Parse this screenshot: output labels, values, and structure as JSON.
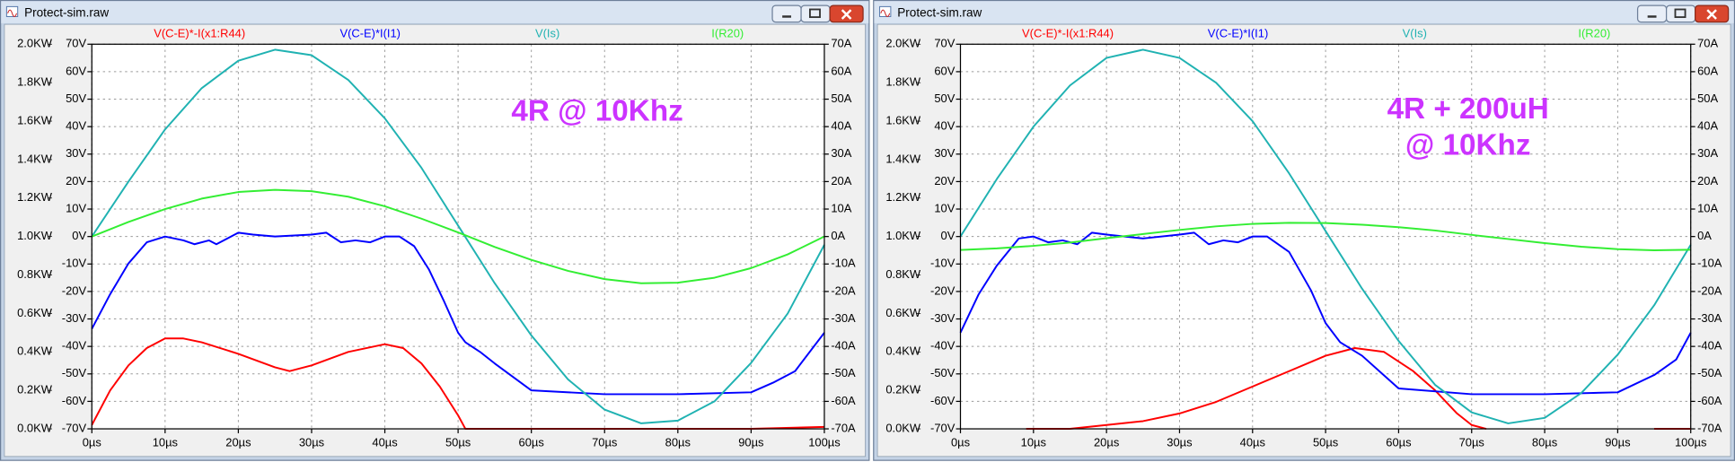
{
  "chart_data": [
    {
      "type": "line",
      "title": "Protect-sim.raw",
      "annotation": [
        "4R @ 10Khz"
      ],
      "xlim": [
        0,
        100
      ],
      "xticks": [
        {
          "value": 0,
          "label": "0µs"
        },
        {
          "value": 10,
          "label": "10µs"
        },
        {
          "value": 20,
          "label": "20µs"
        },
        {
          "value": 30,
          "label": "30µs"
        },
        {
          "value": 40,
          "label": "40µs"
        },
        {
          "value": 50,
          "label": "50µs"
        },
        {
          "value": 60,
          "label": "60µs"
        },
        {
          "value": 70,
          "label": "70µs"
        },
        {
          "value": 80,
          "label": "80µs"
        },
        {
          "value": 90,
          "label": "90µs"
        },
        {
          "value": 100,
          "label": "100µs"
        }
      ],
      "ylim": [
        0,
        2
      ],
      "yticks": [
        {
          "value": 2,
          "label": "2.0KW"
        },
        {
          "value": 1.8,
          "label": "1.8KW"
        },
        {
          "value": 1.6,
          "label": "1.6KW"
        },
        {
          "value": 1.4,
          "label": "1.4KW"
        },
        {
          "value": 1.2,
          "label": "1.2KW"
        },
        {
          "value": 1,
          "label": "1.0KW"
        },
        {
          "value": 0.8,
          "label": "0.8KW"
        },
        {
          "value": 0.6,
          "label": "0.6KW"
        },
        {
          "value": 0.4,
          "label": "0.4KW"
        },
        {
          "value": 0.2,
          "label": "0.2KW"
        },
        {
          "value": 0,
          "label": "0.0KW"
        }
      ],
      "y2lim": [
        -70,
        70
      ],
      "y2ticks": [
        {
          "value": 70,
          "label": "70V"
        },
        {
          "value": 60,
          "label": "60V"
        },
        {
          "value": 50,
          "label": "50V"
        },
        {
          "value": 40,
          "label": "40V"
        },
        {
          "value": 30,
          "label": "30V"
        },
        {
          "value": 20,
          "label": "20V"
        },
        {
          "value": 10,
          "label": "10V"
        },
        {
          "value": 0,
          "label": "0V"
        },
        {
          "value": -10,
          "label": "-10V"
        },
        {
          "value": -20,
          "label": "-20V"
        },
        {
          "value": -30,
          "label": "-30V"
        },
        {
          "value": -40,
          "label": "-40V"
        },
        {
          "value": -50,
          "label": "-50V"
        },
        {
          "value": -60,
          "label": "-60V"
        },
        {
          "value": -70,
          "label": "-70V"
        }
      ],
      "y3lim": [
        -70,
        70
      ],
      "y3ticks": [
        {
          "value": 70,
          "label": "70A"
        },
        {
          "value": 60,
          "label": "60A"
        },
        {
          "value": 50,
          "label": "50A"
        },
        {
          "value": 40,
          "label": "40A"
        },
        {
          "value": 30,
          "label": "30A"
        },
        {
          "value": 20,
          "label": "20A"
        },
        {
          "value": 10,
          "label": "10A"
        },
        {
          "value": 0,
          "label": "0A"
        },
        {
          "value": -10,
          "label": "-10A"
        },
        {
          "value": -20,
          "label": "-20A"
        },
        {
          "value": -30,
          "label": "-30A"
        },
        {
          "value": -40,
          "label": "-40A"
        },
        {
          "value": -50,
          "label": "-50A"
        },
        {
          "value": -60,
          "label": "-60A"
        },
        {
          "value": -70,
          "label": "-70A"
        }
      ],
      "grid": true,
      "series": [
        {
          "name": "V(C-E)*-I(x1:R44)",
          "color": "#ff0000",
          "axis": "y",
          "x": [
            0,
            2.5,
            5,
            7.5,
            10,
            12.5,
            15,
            20,
            25,
            27,
            30,
            35,
            40,
            42.5,
            45,
            47.5,
            50,
            51,
            55,
            60,
            70,
            80,
            90,
            100
          ],
          "values": [
            0.02,
            0.2,
            0.33,
            0.42,
            0.47,
            0.47,
            0.45,
            0.39,
            0.32,
            0.3,
            0.33,
            0.4,
            0.44,
            0.42,
            0.34,
            0.22,
            0.07,
            0,
            0,
            0,
            0,
            0,
            0,
            0.01
          ]
        },
        {
          "name": "V(C-E)*I(I1)",
          "color": "#0000ff",
          "axis": "y",
          "x": [
            0,
            2.5,
            5,
            7.5,
            10,
            12.5,
            14,
            16,
            17,
            20,
            22,
            25,
            30,
            32,
            34,
            36,
            38,
            40,
            42,
            44,
            46,
            48,
            50,
            51,
            53,
            55,
            60,
            70,
            80,
            90,
            93,
            96,
            100
          ],
          "values": [
            0.52,
            0.7,
            0.86,
            0.97,
            1.0,
            0.98,
            0.96,
            0.98,
            0.96,
            1.02,
            1.01,
            1.0,
            1.01,
            1.02,
            0.97,
            0.98,
            0.97,
            1.0,
            1.0,
            0.95,
            0.83,
            0.67,
            0.5,
            0.45,
            0.4,
            0.34,
            0.2,
            0.18,
            0.18,
            0.19,
            0.24,
            0.3,
            0.5
          ]
        },
        {
          "name": "V(Is)",
          "color": "#20b2b2",
          "axis": "y2",
          "x": [
            0,
            5,
            10,
            15,
            20,
            25,
            30,
            35,
            40,
            45,
            50,
            55,
            60,
            65,
            70,
            75,
            80,
            85,
            90,
            95,
            100
          ],
          "values": [
            0,
            20,
            39,
            54,
            64,
            68,
            66,
            57,
            43,
            25,
            4,
            -17,
            -36,
            -52,
            -63,
            -68,
            -67,
            -60,
            -46,
            -28,
            -3
          ]
        },
        {
          "name": "I(R20)",
          "color": "#33ee33",
          "axis": "y3",
          "x": [
            0,
            5,
            10,
            15,
            20,
            25,
            30,
            35,
            40,
            45,
            50,
            55,
            60,
            65,
            70,
            75,
            80,
            85,
            90,
            95,
            100
          ],
          "values": [
            0,
            5.3,
            10,
            13.8,
            16.2,
            17,
            16.5,
            14.5,
            11,
            6.5,
            1.5,
            -3.8,
            -8.5,
            -12.5,
            -15.5,
            -17,
            -16.8,
            -15,
            -11.5,
            -6.5,
            0
          ]
        }
      ]
    },
    {
      "type": "line",
      "title": "Protect-sim.raw",
      "annotation": [
        "4R + 200uH",
        "@ 10Khz"
      ],
      "xlim": [
        0,
        100
      ],
      "xticks": [
        {
          "value": 0,
          "label": "0µs"
        },
        {
          "value": 10,
          "label": "10µs"
        },
        {
          "value": 20,
          "label": "20µs"
        },
        {
          "value": 30,
          "label": "30µs"
        },
        {
          "value": 40,
          "label": "40µs"
        },
        {
          "value": 50,
          "label": "50µs"
        },
        {
          "value": 60,
          "label": "60µs"
        },
        {
          "value": 70,
          "label": "70µs"
        },
        {
          "value": 80,
          "label": "80µs"
        },
        {
          "value": 90,
          "label": "90µs"
        },
        {
          "value": 100,
          "label": "100µs"
        }
      ],
      "ylim": [
        0,
        2
      ],
      "yticks": [
        {
          "value": 2,
          "label": "2.0KW"
        },
        {
          "value": 1.8,
          "label": "1.8KW"
        },
        {
          "value": 1.6,
          "label": "1.6KW"
        },
        {
          "value": 1.4,
          "label": "1.4KW"
        },
        {
          "value": 1.2,
          "label": "1.2KW"
        },
        {
          "value": 1,
          "label": "1.0KW"
        },
        {
          "value": 0.8,
          "label": "0.8KW"
        },
        {
          "value": 0.6,
          "label": "0.6KW"
        },
        {
          "value": 0.4,
          "label": "0.4KW"
        },
        {
          "value": 0.2,
          "label": "0.2KW"
        },
        {
          "value": 0,
          "label": "0.0KW"
        }
      ],
      "y2lim": [
        -70,
        70
      ],
      "y2ticks": [
        {
          "value": 70,
          "label": "70V"
        },
        {
          "value": 60,
          "label": "60V"
        },
        {
          "value": 50,
          "label": "50V"
        },
        {
          "value": 40,
          "label": "40V"
        },
        {
          "value": 30,
          "label": "30V"
        },
        {
          "value": 20,
          "label": "20V"
        },
        {
          "value": 10,
          "label": "10V"
        },
        {
          "value": 0,
          "label": "0V"
        },
        {
          "value": -10,
          "label": "-10V"
        },
        {
          "value": -20,
          "label": "-20V"
        },
        {
          "value": -30,
          "label": "-30V"
        },
        {
          "value": -40,
          "label": "-40V"
        },
        {
          "value": -50,
          "label": "-50V"
        },
        {
          "value": -60,
          "label": "-60V"
        },
        {
          "value": -70,
          "label": "-70V"
        }
      ],
      "y3lim": [
        -70,
        70
      ],
      "y3ticks": [
        {
          "value": 70,
          "label": "70A"
        },
        {
          "value": 60,
          "label": "60A"
        },
        {
          "value": 50,
          "label": "50A"
        },
        {
          "value": 40,
          "label": "40A"
        },
        {
          "value": 30,
          "label": "30A"
        },
        {
          "value": 20,
          "label": "20A"
        },
        {
          "value": 10,
          "label": "10A"
        },
        {
          "value": 0,
          "label": "0A"
        },
        {
          "value": -10,
          "label": "-10A"
        },
        {
          "value": -20,
          "label": "-20A"
        },
        {
          "value": -30,
          "label": "-30A"
        },
        {
          "value": -40,
          "label": "-40A"
        },
        {
          "value": -50,
          "label": "-50A"
        },
        {
          "value": -60,
          "label": "-60A"
        },
        {
          "value": -70,
          "label": "-70A"
        }
      ],
      "grid": true,
      "series": [
        {
          "name": "V(C-E)*-I(x1:R44)",
          "color": "#ff0000",
          "axis": "y",
          "x": [
            9,
            15,
            20,
            25,
            30,
            35,
            40,
            45,
            50,
            54,
            58,
            62,
            65,
            68,
            70,
            72,
            80,
            95,
            100
          ],
          "values": [
            0,
            0,
            0.02,
            0.04,
            0.08,
            0.14,
            0.22,
            0.3,
            0.38,
            0.42,
            0.4,
            0.3,
            0.2,
            0.08,
            0.02,
            0,
            null,
            0,
            0
          ]
        },
        {
          "name": "V(C-E)*I(I1)",
          "color": "#0000ff",
          "axis": "y",
          "x": [
            0,
            2.5,
            5,
            8,
            10,
            12,
            14,
            16,
            18,
            20,
            25,
            30,
            32,
            34,
            36,
            38,
            40,
            42,
            45,
            48,
            50,
            52,
            55,
            60,
            70,
            80,
            90,
            95,
            98,
            100
          ],
          "values": [
            0.5,
            0.7,
            0.85,
            0.99,
            1.0,
            0.97,
            0.98,
            0.96,
            1.02,
            1.01,
            0.99,
            1.01,
            1.02,
            0.96,
            0.98,
            0.97,
            1.0,
            1.0,
            0.92,
            0.72,
            0.55,
            0.45,
            0.38,
            0.21,
            0.18,
            0.18,
            0.19,
            0.28,
            0.36,
            0.5
          ]
        },
        {
          "name": "V(Is)",
          "color": "#20b2b2",
          "axis": "y2",
          "x": [
            0,
            5,
            10,
            15,
            20,
            25,
            30,
            35,
            40,
            45,
            50,
            55,
            60,
            65,
            70,
            75,
            80,
            85,
            90,
            95,
            100
          ],
          "values": [
            0,
            21,
            40,
            55,
            65,
            68,
            65,
            56,
            42,
            23,
            2,
            -19,
            -38,
            -54,
            -64,
            -68,
            -66,
            -57,
            -43,
            -25,
            -3
          ]
        },
        {
          "name": "I(R20)",
          "color": "#33ee33",
          "axis": "y3",
          "x": [
            0,
            5,
            10,
            15,
            20,
            25,
            30,
            35,
            40,
            45,
            50,
            55,
            60,
            65,
            70,
            75,
            80,
            85,
            90,
            95,
            100
          ],
          "values": [
            -4.9,
            -4.3,
            -3.4,
            -2.2,
            -0.6,
            0.9,
            2.4,
            3.7,
            4.6,
            5.0,
            4.9,
            4.3,
            3.4,
            2.2,
            0.6,
            -0.9,
            -2.4,
            -3.7,
            -4.6,
            -5.0,
            -4.8
          ]
        }
      ]
    }
  ]
}
